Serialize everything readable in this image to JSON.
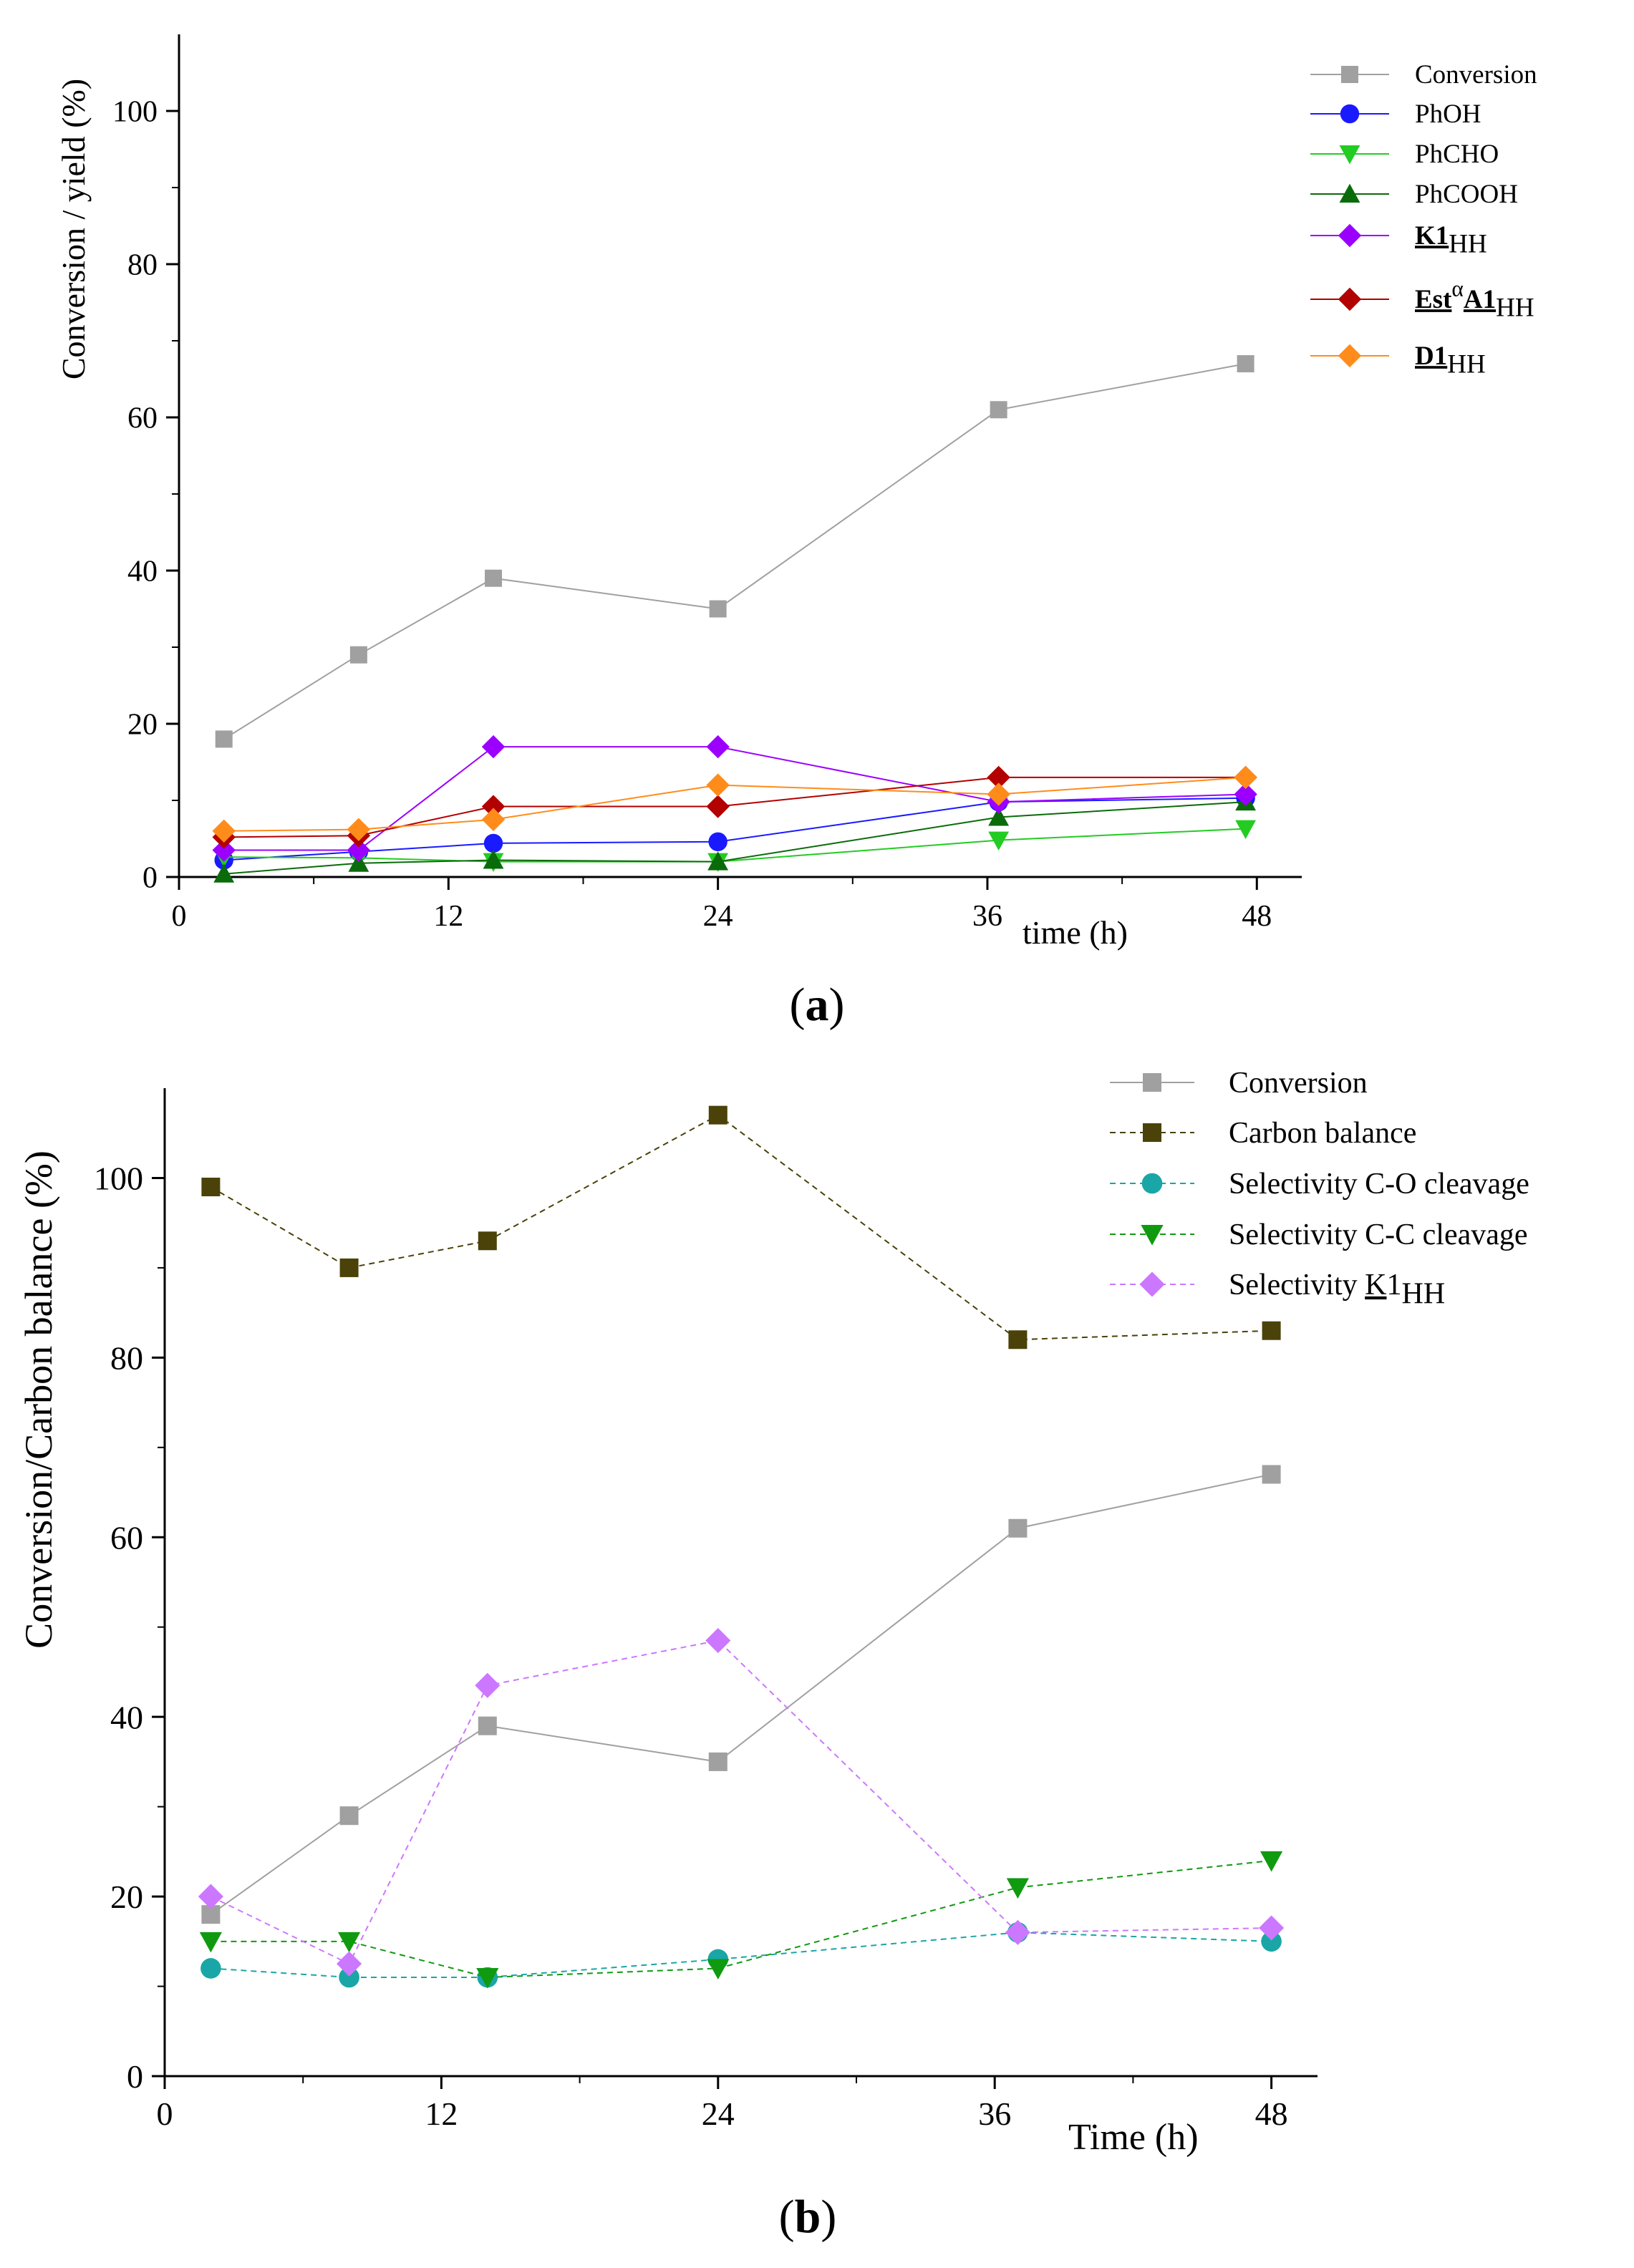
{
  "figure": {
    "panel_a_label": {
      "open": "(",
      "letter": "a",
      "close": ")"
    },
    "panel_b_label": {
      "open": "(",
      "letter": "b",
      "close": ")"
    }
  },
  "chart_data": [
    {
      "id": "a",
      "type": "line",
      "title": "",
      "xlabel": "time (h)",
      "ylabel": "Conversion / yield (%)",
      "xlim": [
        0,
        50
      ],
      "ylim": [
        0,
        110
      ],
      "xticks": [
        0,
        12,
        24,
        36,
        48
      ],
      "yticks": [
        0,
        20,
        40,
        60,
        80,
        100
      ],
      "grid": false,
      "legend_position": "top-right",
      "series": [
        {
          "name": "Conversion",
          "marker": "square",
          "color": "#a0a0a0",
          "dash": false,
          "x": [
            2,
            8,
            14,
            24,
            36.5,
            47.5
          ],
          "y": [
            18,
            29,
            39,
            35,
            61,
            67
          ]
        },
        {
          "name": "PhOH",
          "marker": "circle",
          "color": "#1a1aff",
          "dash": false,
          "x": [
            2,
            8,
            14,
            24,
            36.5,
            47.5
          ],
          "y": [
            2.2,
            3.3,
            4.4,
            4.6,
            9.8,
            10.3
          ]
        },
        {
          "name": "PhCHO",
          "marker": "triangle-down",
          "color": "#22cc22",
          "dash": false,
          "x": [
            2,
            8,
            14,
            24,
            36.5,
            47.5
          ],
          "y": [
            2.6,
            2.5,
            2,
            2,
            4.8,
            6.3
          ]
        },
        {
          "name": "PhCOOH",
          "marker": "triangle-up",
          "color": "#0a6b0a",
          "dash": false,
          "x": [
            2,
            8,
            14,
            24,
            36.5,
            47.5
          ],
          "y": [
            0.4,
            1.8,
            2.2,
            2,
            7.8,
            9.8
          ]
        },
        {
          "name": "K1HH",
          "marker": "diamond",
          "color": "#9b00ff",
          "dash": false,
          "x": [
            2,
            8,
            14,
            24,
            36.5,
            47.5
          ],
          "y": [
            3.5,
            3.5,
            17,
            17,
            9.8,
            10.8
          ]
        },
        {
          "name": "EstαA1HH",
          "marker": "diamond",
          "color": "#b30000",
          "dash": false,
          "x": [
            2,
            8,
            14,
            24,
            36.5,
            47.5
          ],
          "y": [
            5.2,
            5.4,
            9.2,
            9.2,
            13,
            13
          ]
        },
        {
          "name": "D1HH",
          "marker": "diamond",
          "color": "#ff8c1a",
          "dash": false,
          "x": [
            2,
            8,
            14,
            24,
            36.5,
            47.5
          ],
          "y": [
            6,
            6.2,
            7.5,
            12,
            10.8,
            13
          ]
        }
      ],
      "legend": [
        {
          "main": "Conversion",
          "sub": "",
          "sup": "",
          "rest": "",
          "underline": false,
          "bold": false
        },
        {
          "main": "PhOH",
          "sub": "",
          "sup": "",
          "rest": "",
          "underline": false,
          "bold": false
        },
        {
          "main": "PhCHO",
          "sub": "",
          "sup": "",
          "rest": "",
          "underline": false,
          "bold": false
        },
        {
          "main": "PhCOOH",
          "sub": "",
          "sup": "",
          "rest": "",
          "underline": false,
          "bold": false
        },
        {
          "main": "K1",
          "sub": "HH",
          "sup": "",
          "rest": "",
          "underline": true,
          "bold": true
        },
        {
          "main": "Est",
          "sup": "α",
          "rest": "A1",
          "sub": "HH",
          "underline": true,
          "bold": true
        },
        {
          "main": "D1",
          "sub": "HH",
          "sup": "",
          "rest": "",
          "underline": true,
          "bold": true
        }
      ]
    },
    {
      "id": "b",
      "type": "line",
      "title": "",
      "xlabel": "Time (h)",
      "ylabel": "Conversion/Carbon balance (%)",
      "xlim": [
        0,
        50
      ],
      "ylim": [
        0,
        110
      ],
      "xticks": [
        0,
        12,
        24,
        36,
        48
      ],
      "yticks": [
        0,
        20,
        40,
        60,
        80,
        100
      ],
      "grid": false,
      "legend_position": "top-right",
      "series": [
        {
          "name": "Conversion",
          "marker": "square",
          "color": "#a0a0a0",
          "dash": false,
          "x": [
            2,
            8,
            14,
            24,
            37,
            48
          ],
          "y": [
            18,
            29,
            39,
            35,
            61,
            67
          ]
        },
        {
          "name": "Carbon balance",
          "marker": "square",
          "color": "#4a4208",
          "dash": true,
          "x": [
            2,
            8,
            14,
            24,
            37,
            48
          ],
          "y": [
            99,
            90,
            93,
            107,
            82,
            83
          ]
        },
        {
          "name": "Selectivity C-O cleavage",
          "marker": "circle",
          "color": "#1aa6a6",
          "dash": true,
          "x": [
            2,
            8,
            14,
            24,
            37,
            48
          ],
          "y": [
            12,
            11,
            11,
            13,
            16,
            15
          ]
        },
        {
          "name": "Selectivity C-C cleavage",
          "marker": "triangle-down",
          "color": "#109a10",
          "dash": true,
          "x": [
            2,
            8,
            14,
            24,
            37,
            48
          ],
          "y": [
            15,
            15,
            11,
            12,
            21,
            24
          ]
        },
        {
          "name": "Selectivity K1HH",
          "marker": "diamond",
          "color": "#cc77ff",
          "dash": true,
          "x": [
            2,
            8,
            14,
            24,
            37,
            48
          ],
          "y": [
            20,
            12.5,
            43.5,
            48.5,
            16,
            16.5
          ]
        }
      ],
      "legend": [
        {
          "main": "Conversion",
          "sub": "",
          "sup": "",
          "rest": "",
          "underline": false,
          "bold": false
        },
        {
          "main": "Carbon balance",
          "sub": "",
          "sup": "",
          "rest": "",
          "underline": false,
          "bold": false
        },
        {
          "main": "Selectivity C-O cleavage",
          "sub": "",
          "sup": "",
          "rest": "",
          "underline": false,
          "bold": false
        },
        {
          "main": "Selectivity C-C cleavage",
          "sub": "",
          "sup": "",
          "rest": "",
          "underline": false,
          "bold": false
        },
        {
          "main": "Selectivity ",
          "mainU": "K",
          "rest": "1",
          "sub": "HH",
          "sup": "",
          "underline": false,
          "bold": false
        }
      ]
    }
  ]
}
